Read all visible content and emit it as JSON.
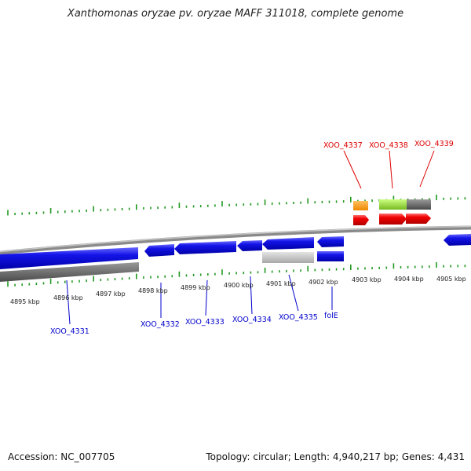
{
  "title": "Xanthomonas oryzae pv. oryzae MAFF 311018, complete genome",
  "footer": {
    "accession": "Accession: NC_007705",
    "summary": "Topology: circular; Length: 4,940,217 bp; Genes: 4,431"
  },
  "colors": {
    "tick": "#229922",
    "backbone": "#8a8a8a",
    "forward_label": "#dd0000",
    "reverse_label": "#0000cc",
    "blue_gene": "#1010e0",
    "red_gene": "#ee0000",
    "orange_gene": "#ff9900",
    "green_gene": "#99dd33",
    "dark_gray_gene": "#666666",
    "light_gray_gene": "#c4c4c4"
  },
  "scale": {
    "labels": [
      "4895 kbp",
      "4896 kbp",
      "4897 kbp",
      "4898 kbp",
      "4899 kbp",
      "4900 kbp",
      "4901 kbp",
      "4902 kbp",
      "4903 kbp",
      "4904 kbp",
      "4905 kbp"
    ]
  },
  "forward_genes": [
    "XOO_4337",
    "XOO_4338",
    "XOO_4339"
  ],
  "reverse_genes": [
    "XOO_4331",
    "XOO_4332",
    "XOO_4333",
    "XOO_4334",
    "XOO_4335",
    "folE"
  ]
}
